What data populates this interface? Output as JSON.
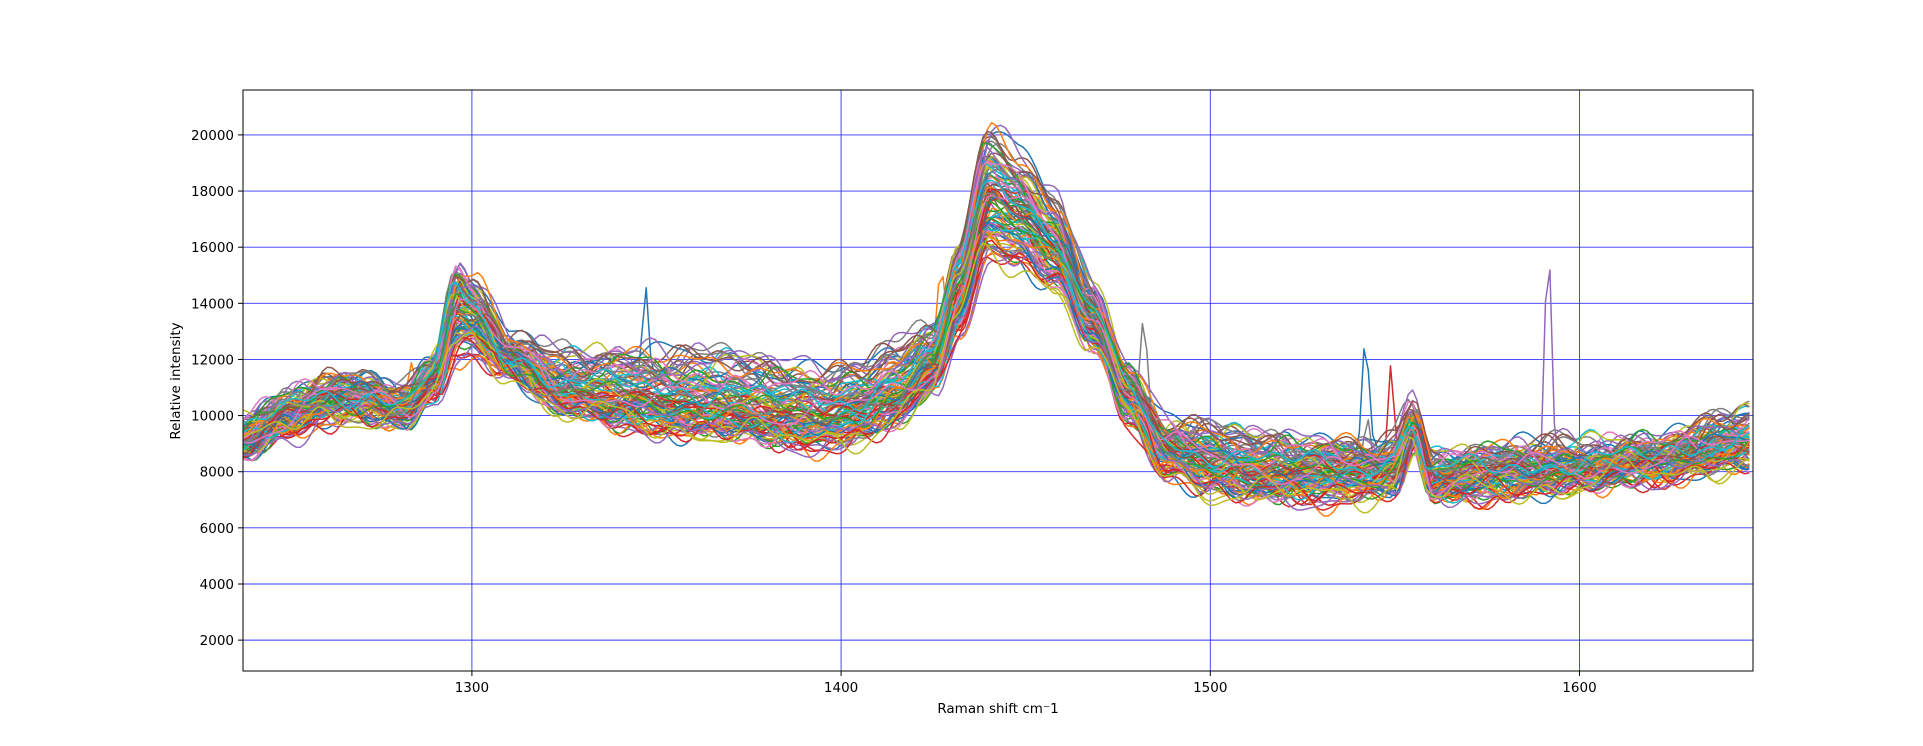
{
  "chart_data": {
    "type": "line",
    "title": "",
    "xlabel": "Raman shift cm⁻1",
    "ylabel": "Relative intensity",
    "xlim": [
      1238,
      1647
    ],
    "ylim": [
      900,
      21600
    ],
    "xticks": [
      1300,
      1400,
      1500,
      1600
    ],
    "yticks": [
      2000,
      4000,
      6000,
      8000,
      10000,
      12000,
      14000,
      16000,
      18000,
      20000
    ],
    "grid": true,
    "grid_color": "#3333ff",
    "legend": "none",
    "palette": [
      "#1f77b4",
      "#ff7f0e",
      "#2ca02c",
      "#d62728",
      "#9467bd",
      "#8c564b",
      "#e377c2",
      "#7f7f7f",
      "#bcbd22",
      "#17becf"
    ],
    "series_count": 100,
    "representative_profile": {
      "x": [
        1238,
        1250,
        1262,
        1270,
        1282,
        1290,
        1296,
        1300,
        1310,
        1325,
        1340,
        1355,
        1370,
        1385,
        1395,
        1405,
        1415,
        1425,
        1432,
        1440,
        1448,
        1458,
        1468,
        1478,
        1488,
        1500,
        1515,
        1530,
        1545,
        1550,
        1555,
        1560,
        1570,
        1585,
        1600,
        1620,
        1647
      ],
      "y_low": [
        8700,
        9500,
        10000,
        10100,
        9900,
        10700,
        12200,
        12400,
        11700,
        10300,
        9800,
        9500,
        9500,
        9100,
        9000,
        9300,
        9900,
        11000,
        13000,
        15800,
        15500,
        14700,
        12500,
        10000,
        8100,
        7400,
        7200,
        7100,
        7300,
        7500,
        9200,
        7200,
        7200,
        7400,
        7600,
        7900,
        8400
      ],
      "y_mid": [
        9200,
        10000,
        10500,
        10600,
        10300,
        11300,
        13800,
        13500,
        12000,
        10800,
        10400,
        10200,
        10200,
        9900,
        9800,
        10100,
        10700,
        11800,
        14200,
        17500,
        17000,
        16000,
        13500,
        10800,
        8700,
        8300,
        8000,
        7900,
        8000,
        8200,
        9700,
        7700,
        7800,
        7900,
        8100,
        8300,
        9000
      ],
      "y_high": [
        9600,
        10600,
        11200,
        11300,
        10700,
        12000,
        15300,
        14800,
        12600,
        12100,
        12300,
        12100,
        12200,
        11800,
        11500,
        11700,
        12400,
        13000,
        16000,
        20200,
        19200,
        17500,
        14500,
        11500,
        9500,
        9500,
        9200,
        9000,
        8800,
        9000,
        10200,
        8400,
        8700,
        8800,
        8900,
        9000,
        10100
      ]
    },
    "spikes": [
      {
        "x": 1283.5,
        "y": 11800,
        "series": 1
      },
      {
        "x": 1288.5,
        "y": 12200,
        "series": 7
      },
      {
        "x": 1347,
        "y": 14100,
        "series": 0
      },
      {
        "x": 1427,
        "y": 15400,
        "series": 1
      },
      {
        "x": 1482,
        "y": 13400,
        "series": 7
      },
      {
        "x": 1542,
        "y": 12000,
        "series": 0
      },
      {
        "x": 1542.5,
        "y": 9800,
        "series": 7
      },
      {
        "x": 1549,
        "y": 12200,
        "series": 3
      },
      {
        "x": 1591.5,
        "y": 16200,
        "series": 4
      },
      {
        "x": 1570,
        "y": 9500,
        "series": 4
      }
    ]
  }
}
